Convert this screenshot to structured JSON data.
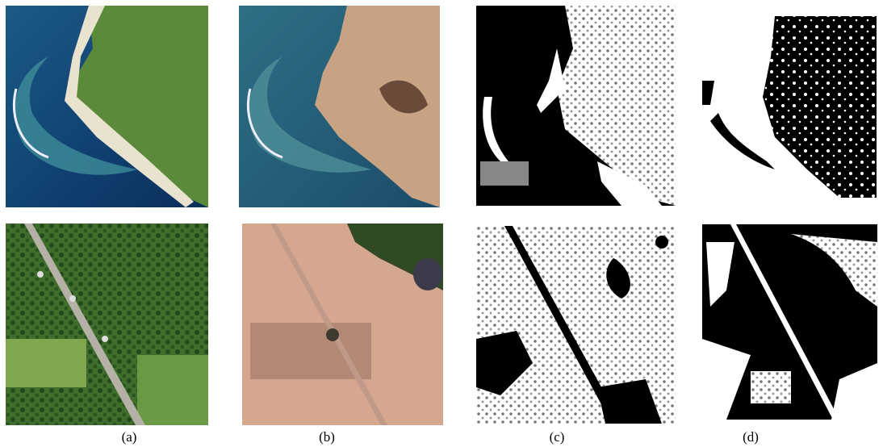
{
  "figure": {
    "captions": [
      "(a)",
      "(b)",
      "(c)",
      "(d)"
    ]
  }
}
